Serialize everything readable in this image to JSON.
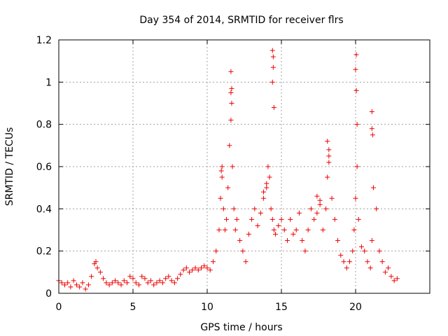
{
  "chart_data": {
    "type": "scatter",
    "title": "Day 354 of 2014, SRMTID for receiver flrs",
    "xlabel": "GPS time / hours",
    "ylabel": "SRMTID / TECUs",
    "xlim": [
      0,
      25
    ],
    "ylim": [
      0,
      1.2
    ],
    "xticks": [
      0,
      5,
      10,
      15,
      20
    ],
    "yticks": [
      0,
      0.2,
      0.4,
      0.6,
      0.8,
      1,
      1.2
    ],
    "xtick_labels": [
      "0",
      "5",
      "10",
      "15",
      "20"
    ],
    "ytick_labels": [
      "0",
      "0.2",
      "0.4",
      "0.6",
      "0.8",
      "1",
      "1.2"
    ],
    "grid": true,
    "marker": "+",
    "marker_color": "#ee0000",
    "series": [
      {
        "name": "SRMTID",
        "x": [
          0.0,
          0.2,
          0.4,
          0.6,
          0.8,
          1.0,
          1.2,
          1.4,
          1.6,
          1.8,
          2.0,
          2.2,
          2.4,
          2.5,
          2.6,
          2.8,
          3.0,
          3.2,
          3.4,
          3.6,
          3.8,
          4.0,
          4.2,
          4.4,
          4.6,
          4.8,
          5.0,
          5.2,
          5.4,
          5.6,
          5.8,
          6.0,
          6.2,
          6.4,
          6.6,
          6.8,
          7.0,
          7.2,
          7.4,
          7.6,
          7.8,
          8.0,
          8.2,
          8.4,
          8.6,
          8.8,
          9.0,
          9.2,
          9.4,
          9.6,
          9.8,
          10.0,
          10.2,
          10.4,
          10.6,
          10.8,
          10.9,
          11.0,
          11.1,
          11.2,
          11.3,
          11.4,
          11.5,
          11.6,
          11.7,
          11.8,
          11.9,
          12.0,
          12.2,
          12.4,
          12.6,
          12.8,
          13.0,
          13.2,
          13.4,
          13.6,
          13.8,
          14.0,
          14.1,
          14.2,
          14.3,
          14.4,
          14.5,
          14.6,
          14.8,
          15.0,
          15.2,
          15.4,
          15.6,
          15.8,
          16.0,
          16.2,
          16.4,
          16.6,
          16.8,
          17.0,
          17.2,
          17.4,
          17.6,
          17.8,
          18.0,
          18.1,
          18.2,
          18.4,
          18.6,
          18.8,
          19.0,
          19.2,
          19.4,
          19.6,
          19.8,
          19.9,
          20.0,
          20.1,
          20.2,
          20.4,
          20.6,
          20.8,
          21.0,
          21.1,
          21.2,
          21.4,
          21.6,
          21.8,
          22.0,
          22.2,
          22.4,
          22.6,
          22.8,
          11.6,
          11.6,
          11.65,
          11.65,
          14.4,
          14.4,
          14.45,
          14.45,
          14.5,
          20.0,
          20.05,
          20.05,
          20.1,
          21.1,
          21.1,
          21.15,
          18.1,
          18.2,
          18.2,
          10.95,
          11.0,
          13.8,
          14.0,
          17.4,
          17.6
        ],
        "y": [
          0.06,
          0.05,
          0.04,
          0.05,
          0.03,
          0.06,
          0.04,
          0.03,
          0.05,
          0.02,
          0.04,
          0.08,
          0.14,
          0.15,
          0.12,
          0.1,
          0.07,
          0.05,
          0.04,
          0.05,
          0.06,
          0.05,
          0.04,
          0.06,
          0.05,
          0.08,
          0.07,
          0.05,
          0.04,
          0.08,
          0.07,
          0.05,
          0.06,
          0.04,
          0.05,
          0.06,
          0.05,
          0.07,
          0.08,
          0.06,
          0.05,
          0.07,
          0.09,
          0.11,
          0.12,
          0.1,
          0.11,
          0.12,
          0.11,
          0.12,
          0.13,
          0.12,
          0.11,
          0.15,
          0.2,
          0.3,
          0.45,
          0.55,
          0.4,
          0.3,
          0.35,
          0.5,
          0.7,
          0.82,
          0.6,
          0.4,
          0.3,
          0.35,
          0.25,
          0.2,
          0.15,
          0.28,
          0.35,
          0.4,
          0.32,
          0.38,
          0.45,
          0.5,
          0.6,
          0.55,
          0.4,
          0.35,
          0.3,
          0.28,
          0.32,
          0.35,
          0.3,
          0.25,
          0.35,
          0.28,
          0.3,
          0.38,
          0.25,
          0.2,
          0.3,
          0.4,
          0.35,
          0.38,
          0.42,
          0.3,
          0.4,
          0.55,
          0.65,
          0.45,
          0.35,
          0.25,
          0.18,
          0.15,
          0.12,
          0.15,
          0.2,
          0.3,
          0.45,
          0.6,
          0.35,
          0.22,
          0.2,
          0.15,
          0.12,
          0.25,
          0.5,
          0.4,
          0.2,
          0.15,
          0.1,
          0.12,
          0.08,
          0.06,
          0.07,
          0.95,
          1.05,
          0.9,
          0.97,
          1.0,
          1.15,
          1.07,
          1.12,
          0.88,
          1.06,
          1.13,
          0.96,
          0.8,
          0.86,
          0.78,
          0.75,
          0.72,
          0.68,
          0.62,
          0.58,
          0.6,
          0.48,
          0.52,
          0.46,
          0.44
        ]
      }
    ]
  }
}
